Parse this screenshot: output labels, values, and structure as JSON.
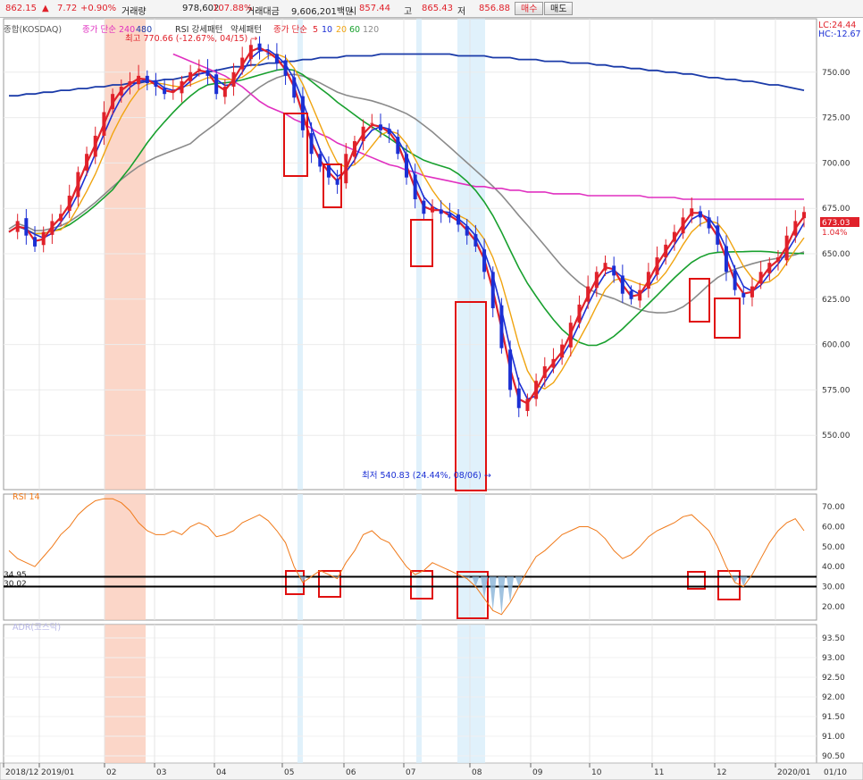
{
  "quote": {
    "price": "862.15",
    "arrow": "▲",
    "change": "7.72",
    "change_pct": "+0.90%",
    "volume_label": "거래량",
    "volume": "978,602",
    "volume_pct": "107.88%",
    "amount_label": "거래대금",
    "amount": "9,606,201백만",
    "open_label": "시",
    "open": "857.44",
    "high_label": "고",
    "high": "865.43",
    "low_label": "저",
    "low": "856.88",
    "buy_label": "매수",
    "sell_label": "매도"
  },
  "legend": {
    "main_index": "종합(KOSDAQ)",
    "ma_long": "종가 단순 240",
    "ma_long2": "480",
    "rsi_pattern": "RSI 강세패턴",
    "rsi_pattern2": "약세패턴",
    "ma_short": "종가 단순",
    "ma_5": "5",
    "ma_10": "10",
    "ma_20": "20",
    "ma_60": "60",
    "ma_120": "120",
    "right_lc": "LC:24.44",
    "right_hc": "HC:-12.67"
  },
  "annotations": {
    "high_text": "최고 770.66 (-12.67%, 04/15) →",
    "low_text": "최저 540.83 (24.44%, 08/06) →",
    "price_tag": "673.03",
    "price_tag_pct": "1.04%"
  },
  "price_axis": {
    "ticks": [
      "750.00",
      "725.00",
      "700.00",
      "675.00",
      "650.00",
      "625.00",
      "600.00",
      "575.00",
      "550.00"
    ]
  },
  "rsi_panel": {
    "title": "RSI 14",
    "level_upper": "34.95",
    "level_lower": "30.02",
    "ticks": [
      "70.00",
      "60.00",
      "50.00",
      "40.00",
      "30.00",
      "20.00"
    ]
  },
  "adr_panel": {
    "title": "ADR(코스닥)",
    "ticks": [
      "93.50",
      "93.00",
      "92.50",
      "92.00",
      "91.50",
      "91.00",
      "90.50"
    ]
  },
  "time_axis": {
    "labels": [
      "2018/12",
      "2019/01",
      "02",
      "03",
      "04",
      "05",
      "06",
      "07",
      "08",
      "09",
      "10",
      "11",
      "12",
      "2020/01"
    ],
    "right_label": "01/10"
  },
  "colors": {
    "candle_up": "#e0212a",
    "candle_down": "#1b2fd4",
    "ma5": "#e0212a",
    "ma10": "#1b2fd4",
    "ma20": "#f0a410",
    "ma60": "#18a02e",
    "ma120": "#8a8a8a",
    "ma240": "#e030c0",
    "ma480": "#1a3aa8",
    "rsi_line": "#f07a1a",
    "highlight_box": "#e01010",
    "shade_pink": "#f9c8b6",
    "shade_blue": "#d6ecf9"
  },
  "chart_data": {
    "type": "line",
    "title": "종합(KOSDAQ)",
    "y_range": [
      525,
      775
    ],
    "shaded_bands": [
      {
        "color": "pink",
        "from": "2019/02 early",
        "to": "2019/02 late"
      },
      {
        "color": "blue",
        "near": "2019/05 late"
      },
      {
        "color": "blue",
        "near": "2019/07 late"
      },
      {
        "color": "blue",
        "from": "2019/08 early",
        "to": "2019/08 mid"
      }
    ],
    "series": [
      {
        "name": "price",
        "values": [
          662,
          668,
          660,
          654,
          662,
          668,
          672,
          682,
          695,
          705,
          715,
          728,
          738,
          742,
          745,
          748,
          744,
          742,
          738,
          740,
          745,
          750,
          752,
          748,
          738,
          742,
          750,
          758,
          765,
          762,
          760,
          755,
          748,
          736,
          718,
          705,
          698,
          692,
          688,
          705,
          712,
          720,
          722,
          718,
          716,
          705,
          692,
          680,
          672,
          676,
          672,
          670,
          666,
          660,
          654,
          640,
          620,
          598,
          575,
          565,
          570,
          580,
          588,
          592,
          600,
          612,
          622,
          632,
          640,
          645,
          638,
          628,
          625,
          630,
          640,
          648,
          655,
          662,
          670,
          675,
          670,
          664,
          655,
          640,
          630,
          626,
          632,
          640,
          645,
          648,
          660,
          668,
          673
        ]
      },
      {
        "name": "MA240",
        "values": [
          null,
          null,
          null,
          null,
          null,
          null,
          null,
          null,
          null,
          null,
          null,
          null,
          null,
          null,
          null,
          null,
          null,
          null,
          null,
          760,
          758,
          756,
          754,
          752,
          750,
          748,
          745,
          742,
          738,
          734,
          731,
          729,
          727,
          724,
          722,
          719,
          716,
          714,
          711,
          709,
          707,
          705,
          703,
          701,
          699,
          698,
          696,
          695,
          693,
          692,
          691,
          690,
          689,
          688,
          687,
          687,
          686,
          686,
          685,
          685,
          684,
          684,
          684,
          683,
          683,
          683,
          683,
          682,
          682,
          682,
          682,
          682,
          682,
          682,
          681,
          681,
          681,
          681,
          680,
          680,
          680,
          680,
          680,
          680,
          680,
          680,
          680,
          680,
          680,
          680,
          680,
          680,
          680
        ]
      },
      {
        "name": "MA480",
        "values": [
          737,
          737,
          738,
          738,
          739,
          739,
          740,
          740,
          741,
          741,
          742,
          742,
          743,
          743,
          744,
          744,
          745,
          745,
          746,
          746,
          747,
          748,
          749,
          750,
          751,
          752,
          753,
          753,
          754,
          754,
          755,
          755,
          756,
          756,
          757,
          757,
          758,
          758,
          758,
          759,
          759,
          759,
          759,
          760,
          760,
          760,
          760,
          760,
          760,
          760,
          760,
          760,
          759,
          759,
          759,
          759,
          758,
          758,
          758,
          757,
          757,
          757,
          756,
          756,
          756,
          755,
          755,
          755,
          754,
          754,
          753,
          753,
          752,
          752,
          751,
          751,
          750,
          750,
          749,
          749,
          748,
          747,
          747,
          746,
          746,
          745,
          745,
          744,
          743,
          743,
          742,
          741,
          740
        ]
      }
    ],
    "rsi": {
      "levels": [
        34.95,
        30.02
      ],
      "y_range": [
        15,
        75
      ],
      "values": [
        48,
        44,
        42,
        40,
        45,
        50,
        56,
        60,
        66,
        70,
        73,
        74,
        74,
        72,
        68,
        62,
        58,
        56,
        56,
        58,
        56,
        60,
        62,
        60,
        55,
        56,
        58,
        62,
        64,
        66,
        63,
        58,
        52,
        40,
        32,
        35,
        38,
        36,
        34,
        42,
        48,
        56,
        58,
        54,
        52,
        46,
        40,
        36,
        38,
        42,
        40,
        38,
        36,
        34,
        30,
        24,
        18,
        16,
        22,
        30,
        38,
        45,
        48,
        52,
        56,
        58,
        60,
        60,
        58,
        54,
        48,
        44,
        46,
        50,
        55,
        58,
        60,
        62,
        65,
        66,
        62,
        58,
        50,
        40,
        32,
        30,
        36,
        44,
        52,
        58,
        62,
        64,
        58
      ]
    }
  }
}
